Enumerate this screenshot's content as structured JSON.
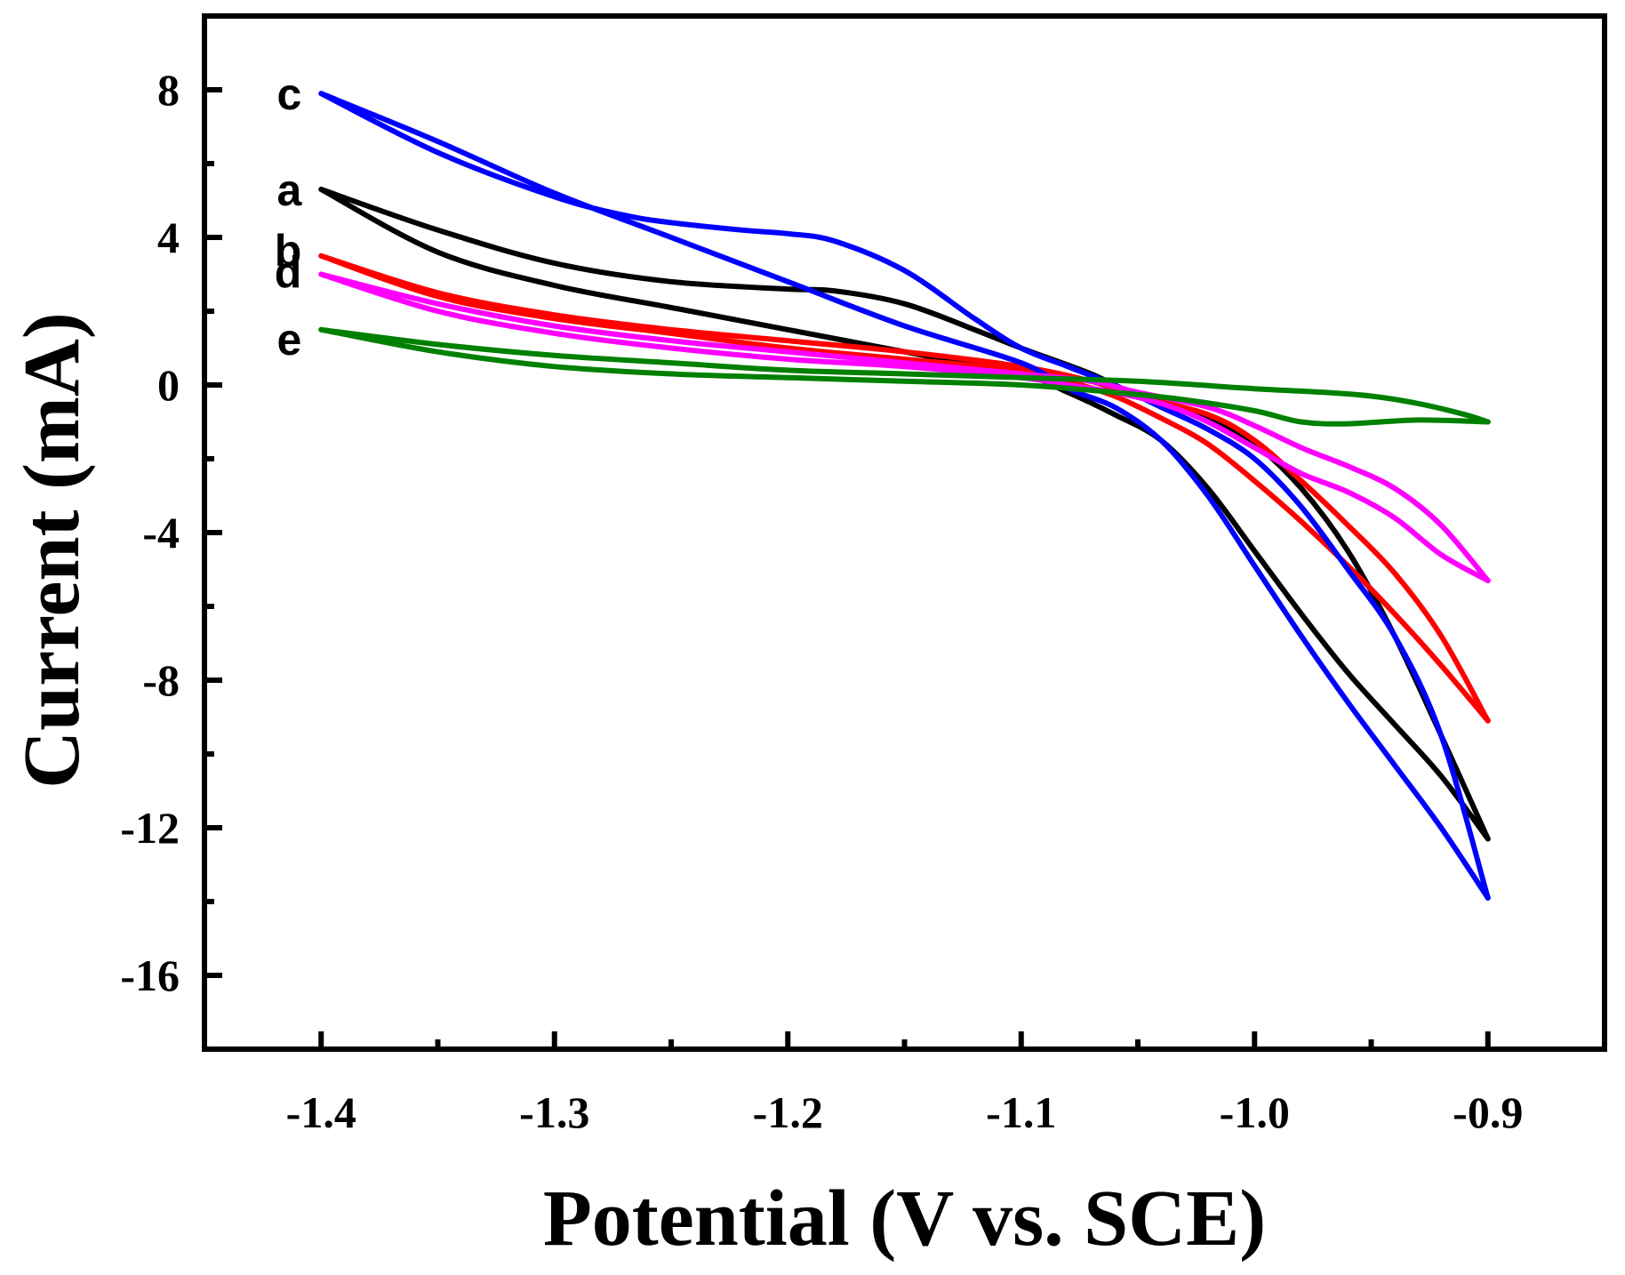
{
  "chart_data": {
    "type": "line",
    "title": "",
    "xlabel": "Potential (V vs. SCE)",
    "ylabel": "Current (mA)",
    "xlim": [
      -1.45,
      -0.85
    ],
    "ylim": [
      -18,
      10
    ],
    "xticks": [
      -1.4,
      -1.3,
      -1.2,
      -1.1,
      -1.0,
      -0.9
    ],
    "xtick_labels": [
      "-1.4",
      "-1.3",
      "-1.2",
      "-1.1",
      "-1.0",
      "-0.9"
    ],
    "yticks": [
      8,
      4,
      0,
      -4,
      -8,
      -12,
      -16
    ],
    "ytick_labels": [
      "8",
      "4",
      "0",
      "-4",
      "-8",
      "-12",
      "-16"
    ],
    "grid": false,
    "series": [
      {
        "name": "a",
        "color": "#000000",
        "forward": [
          [
            -1.4,
            5.3
          ],
          [
            -1.35,
            4.2
          ],
          [
            -1.3,
            3.3
          ],
          [
            -1.25,
            2.8
          ],
          [
            -1.2,
            2.6
          ],
          [
            -1.18,
            2.55
          ],
          [
            -1.15,
            2.2
          ],
          [
            -1.12,
            1.5
          ],
          [
            -1.1,
            1.0
          ],
          [
            -1.07,
            0.3
          ],
          [
            -1.05,
            -0.3
          ],
          [
            -1.02,
            -0.9
          ],
          [
            -1.0,
            -1.6
          ],
          [
            -0.98,
            -2.8
          ],
          [
            -0.96,
            -4.5
          ],
          [
            -0.94,
            -6.8
          ],
          [
            -0.92,
            -9.5
          ],
          [
            -0.9,
            -12.3
          ]
        ],
        "reverse": [
          [
            -0.9,
            -12.3
          ],
          [
            -0.92,
            -10.6
          ],
          [
            -0.94,
            -9.2
          ],
          [
            -0.96,
            -7.8
          ],
          [
            -0.98,
            -6.2
          ],
          [
            -1.0,
            -4.5
          ],
          [
            -1.02,
            -2.8
          ],
          [
            -1.04,
            -1.5
          ],
          [
            -1.06,
            -0.8
          ],
          [
            -1.08,
            -0.2
          ],
          [
            -1.1,
            0.3
          ],
          [
            -1.15,
            0.9
          ],
          [
            -1.2,
            1.5
          ],
          [
            -1.25,
            2.1
          ],
          [
            -1.3,
            2.7
          ],
          [
            -1.35,
            3.6
          ],
          [
            -1.4,
            5.3
          ]
        ]
      },
      {
        "name": "b",
        "color": "#ff0000",
        "forward": [
          [
            -1.4,
            3.5
          ],
          [
            -1.35,
            2.5
          ],
          [
            -1.3,
            1.9
          ],
          [
            -1.25,
            1.5
          ],
          [
            -1.2,
            1.2
          ],
          [
            -1.15,
            0.9
          ],
          [
            -1.1,
            0.5
          ],
          [
            -1.07,
            0.1
          ],
          [
            -1.05,
            -0.3
          ],
          [
            -1.02,
            -0.8
          ],
          [
            -1.0,
            -1.5
          ],
          [
            -0.98,
            -2.6
          ],
          [
            -0.96,
            -3.8
          ],
          [
            -0.94,
            -5.1
          ],
          [
            -0.92,
            -6.8
          ],
          [
            -0.9,
            -9.1
          ]
        ],
        "reverse": [
          [
            -0.9,
            -9.1
          ],
          [
            -0.92,
            -7.6
          ],
          [
            -0.94,
            -6.2
          ],
          [
            -0.96,
            -4.9
          ],
          [
            -0.98,
            -3.7
          ],
          [
            -1.0,
            -2.6
          ],
          [
            -1.02,
            -1.6
          ],
          [
            -1.04,
            -0.9
          ],
          [
            -1.06,
            -0.3
          ],
          [
            -1.08,
            0.1
          ],
          [
            -1.1,
            0.4
          ],
          [
            -1.15,
            0.7
          ],
          [
            -1.2,
            1.0
          ],
          [
            -1.25,
            1.4
          ],
          [
            -1.3,
            1.8
          ],
          [
            -1.35,
            2.4
          ],
          [
            -1.4,
            3.5
          ]
        ]
      },
      {
        "name": "c",
        "color": "#0000ff",
        "forward": [
          [
            -1.4,
            7.9
          ],
          [
            -1.35,
            6.3
          ],
          [
            -1.3,
            5.1
          ],
          [
            -1.27,
            4.6
          ],
          [
            -1.25,
            4.4
          ],
          [
            -1.22,
            4.2
          ],
          [
            -1.2,
            4.1
          ],
          [
            -1.18,
            3.9
          ],
          [
            -1.15,
            3.1
          ],
          [
            -1.12,
            1.8
          ],
          [
            -1.1,
            1.0
          ],
          [
            -1.08,
            0.5
          ],
          [
            -1.06,
            0.0
          ],
          [
            -1.04,
            -0.6
          ],
          [
            -1.02,
            -1.2
          ],
          [
            -1.0,
            -2.0
          ],
          [
            -0.98,
            -3.3
          ],
          [
            -0.96,
            -5.0
          ],
          [
            -0.94,
            -6.8
          ],
          [
            -0.92,
            -9.5
          ],
          [
            -0.9,
            -13.9
          ]
        ],
        "reverse": [
          [
            -0.9,
            -13.9
          ],
          [
            -0.92,
            -12.0
          ],
          [
            -0.94,
            -10.3
          ],
          [
            -0.96,
            -8.6
          ],
          [
            -0.98,
            -6.8
          ],
          [
            -1.0,
            -4.9
          ],
          [
            -1.02,
            -3.0
          ],
          [
            -1.04,
            -1.5
          ],
          [
            -1.06,
            -0.6
          ],
          [
            -1.08,
            -0.1
          ],
          [
            -1.1,
            0.6
          ],
          [
            -1.15,
            1.6
          ],
          [
            -1.2,
            2.8
          ],
          [
            -1.25,
            4.0
          ],
          [
            -1.3,
            5.2
          ],
          [
            -1.35,
            6.6
          ],
          [
            -1.4,
            7.9
          ]
        ]
      },
      {
        "name": "d",
        "color": "#ff00ff",
        "forward": [
          [
            -1.4,
            3.0
          ],
          [
            -1.35,
            2.2
          ],
          [
            -1.3,
            1.6
          ],
          [
            -1.25,
            1.2
          ],
          [
            -1.2,
            0.9
          ],
          [
            -1.15,
            0.6
          ],
          [
            -1.1,
            0.3
          ],
          [
            -1.07,
            0.1
          ],
          [
            -1.05,
            -0.2
          ],
          [
            -1.02,
            -0.6
          ],
          [
            -1.0,
            -1.1
          ],
          [
            -0.98,
            -1.7
          ],
          [
            -0.96,
            -2.2
          ],
          [
            -0.94,
            -2.8
          ],
          [
            -0.92,
            -3.8
          ],
          [
            -0.9,
            -5.3
          ]
        ],
        "reverse": [
          [
            -0.9,
            -5.3
          ],
          [
            -0.92,
            -4.6
          ],
          [
            -0.94,
            -3.6
          ],
          [
            -0.96,
            -2.9
          ],
          [
            -0.98,
            -2.4
          ],
          [
            -1.0,
            -1.7
          ],
          [
            -1.02,
            -1.0
          ],
          [
            -1.04,
            -0.5
          ],
          [
            -1.06,
            -0.2
          ],
          [
            -1.08,
            0.0
          ],
          [
            -1.1,
            0.2
          ],
          [
            -1.15,
            0.5
          ],
          [
            -1.2,
            0.7
          ],
          [
            -1.25,
            1.0
          ],
          [
            -1.3,
            1.4
          ],
          [
            -1.35,
            2.0
          ],
          [
            -1.4,
            3.0
          ]
        ]
      },
      {
        "name": "e",
        "color": "#008000",
        "forward": [
          [
            -1.4,
            1.5
          ],
          [
            -1.35,
            1.1
          ],
          [
            -1.3,
            0.8
          ],
          [
            -1.25,
            0.6
          ],
          [
            -1.2,
            0.4
          ],
          [
            -1.15,
            0.3
          ],
          [
            -1.1,
            0.2
          ],
          [
            -1.05,
            0.1
          ],
          [
            -1.0,
            -0.1
          ],
          [
            -0.97,
            -0.2
          ],
          [
            -0.95,
            -0.3
          ],
          [
            -0.93,
            -0.5
          ],
          [
            -0.91,
            -0.8
          ],
          [
            -0.9,
            -1.0
          ]
        ],
        "reverse": [
          [
            -0.9,
            -1.0
          ],
          [
            -0.93,
            -0.95
          ],
          [
            -0.96,
            -1.05
          ],
          [
            -0.98,
            -1.0
          ],
          [
            -1.0,
            -0.7
          ],
          [
            -1.03,
            -0.4
          ],
          [
            -1.06,
            -0.2
          ],
          [
            -1.1,
            0.0
          ],
          [
            -1.15,
            0.1
          ],
          [
            -1.2,
            0.2
          ],
          [
            -1.25,
            0.3
          ],
          [
            -1.3,
            0.5
          ],
          [
            -1.35,
            0.9
          ],
          [
            -1.4,
            1.5
          ]
        ]
      }
    ],
    "curve_labels": [
      {
        "text": "c",
        "series": "c",
        "at": [
          -1.4,
          7.9
        ]
      },
      {
        "text": "a",
        "series": "a",
        "at": [
          -1.4,
          5.3
        ]
      },
      {
        "text": "b",
        "series": "b",
        "at": [
          -1.4,
          3.5
        ]
      },
      {
        "text": "d",
        "series": "d",
        "at": [
          -1.4,
          3.0
        ]
      },
      {
        "text": "e",
        "series": "e",
        "at": [
          -1.4,
          1.5
        ]
      }
    ]
  }
}
